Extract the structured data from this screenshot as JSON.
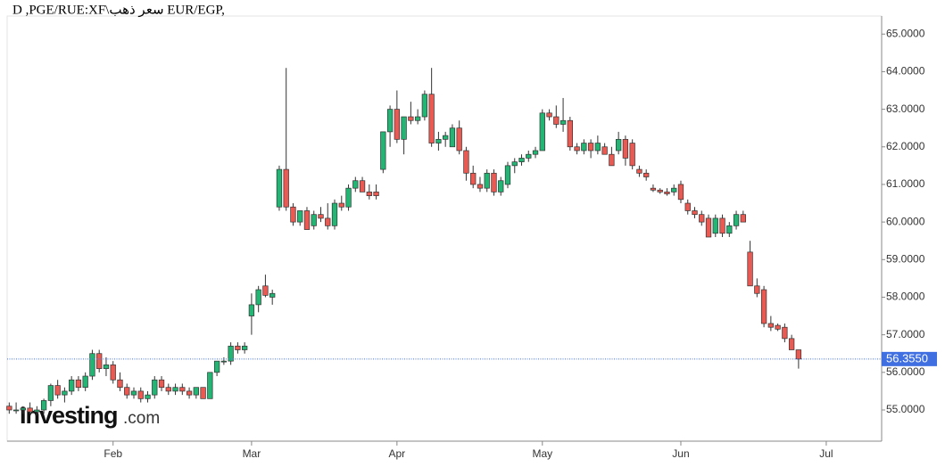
{
  "chart_data": {
    "type": "candlestick",
    "title": "D ,PGE/RUE:XF\\سعر ذهب EUR/EGP,",
    "watermark": [
      "Investing",
      ".com"
    ],
    "up_color": "#22b573",
    "down_color": "#ea5a52",
    "outline_color": "#333333",
    "ylim": [
      54.17,
      65.48
    ],
    "yticks": [
      {
        "value": 55,
        "label": "55.0000"
      },
      {
        "value": 56,
        "label": "56.0000"
      },
      {
        "value": 57,
        "label": "57.0000"
      },
      {
        "value": 58,
        "label": "58.0000"
      },
      {
        "value": 59,
        "label": "59.0000"
      },
      {
        "value": 60,
        "label": "60.0000"
      },
      {
        "value": 61,
        "label": "61.0000"
      },
      {
        "value": 62,
        "label": "62.0000"
      },
      {
        "value": 63,
        "label": "63.0000"
      },
      {
        "value": 64,
        "label": "64.0000"
      },
      {
        "value": 65,
        "label": "65.0000"
      }
    ],
    "xlim": [
      -0.3,
      126
    ],
    "xticks": [
      {
        "value": 15,
        "label": "Feb"
      },
      {
        "value": 35,
        "label": "Mar"
      },
      {
        "value": 56,
        "label": "Apr"
      },
      {
        "value": 77,
        "label": "May"
      },
      {
        "value": 97,
        "label": "Jun"
      },
      {
        "value": 118,
        "label": "Jul"
      }
    ],
    "grid": false,
    "last_price": {
      "value": 56.355,
      "label": "56.3550",
      "color": "#3f6fe0"
    },
    "ohlc": [
      [
        55.1,
        55.2,
        54.9,
        55.0
      ],
      [
        55.0,
        55.2,
        54.9,
        55.0
      ],
      [
        55.0,
        55.1,
        54.9,
        55.05
      ],
      [
        55.05,
        55.2,
        54.9,
        54.95
      ],
      [
        54.95,
        55.1,
        54.85,
        55.0
      ],
      [
        55.0,
        55.3,
        54.9,
        55.25
      ],
      [
        55.25,
        55.7,
        55.1,
        55.65
      ],
      [
        55.65,
        55.8,
        55.3,
        55.4
      ],
      [
        55.4,
        55.6,
        55.2,
        55.5
      ],
      [
        55.5,
        55.9,
        55.4,
        55.8
      ],
      [
        55.8,
        55.9,
        55.5,
        55.6
      ],
      [
        55.6,
        56.0,
        55.5,
        55.9
      ],
      [
        55.9,
        56.6,
        55.8,
        56.5
      ],
      [
        56.5,
        56.6,
        56.0,
        56.1
      ],
      [
        56.1,
        56.4,
        55.9,
        56.2
      ],
      [
        56.2,
        56.3,
        55.7,
        55.8
      ],
      [
        55.8,
        56.0,
        55.5,
        55.6
      ],
      [
        55.6,
        55.7,
        55.3,
        55.4
      ],
      [
        55.4,
        55.6,
        55.3,
        55.5
      ],
      [
        55.5,
        55.6,
        55.2,
        55.3
      ],
      [
        55.3,
        55.5,
        55.2,
        55.4
      ],
      [
        55.4,
        55.9,
        55.3,
        55.8
      ],
      [
        55.8,
        55.9,
        55.5,
        55.6
      ],
      [
        55.6,
        55.7,
        55.4,
        55.5
      ],
      [
        55.5,
        55.7,
        55.4,
        55.6
      ],
      [
        55.6,
        55.7,
        55.4,
        55.5
      ],
      [
        55.5,
        55.6,
        55.3,
        55.4
      ],
      [
        55.4,
        55.6,
        55.3,
        55.6
      ],
      [
        55.6,
        55.6,
        55.3,
        55.3
      ],
      [
        55.3,
        56.0,
        55.3,
        56.0
      ],
      [
        56.0,
        56.3,
        55.9,
        56.3
      ],
      [
        56.3,
        56.4,
        56.2,
        56.3
      ],
      [
        56.3,
        56.8,
        56.2,
        56.7
      ],
      [
        56.7,
        56.8,
        56.5,
        56.6
      ],
      [
        56.6,
        56.8,
        56.5,
        56.7
      ],
      [
        57.5,
        58.1,
        57.0,
        57.8
      ],
      [
        57.8,
        58.3,
        57.6,
        58.2
      ],
      [
        58.3,
        58.6,
        58.0,
        58.05
      ],
      [
        58.0,
        58.2,
        57.8,
        58.1
      ],
      [
        60.4,
        61.5,
        60.3,
        61.4
      ],
      [
        61.4,
        64.1,
        60.3,
        60.4
      ],
      [
        60.4,
        60.5,
        59.9,
        60.0
      ],
      [
        60.0,
        60.3,
        59.9,
        60.3
      ],
      [
        60.3,
        60.4,
        59.8,
        59.8
      ],
      [
        59.9,
        60.3,
        59.8,
        60.2
      ],
      [
        60.2,
        60.4,
        60.0,
        60.1
      ],
      [
        60.1,
        60.5,
        59.8,
        59.9
      ],
      [
        59.9,
        60.6,
        59.8,
        60.5
      ],
      [
        60.5,
        60.7,
        60.3,
        60.4
      ],
      [
        60.4,
        61.0,
        60.3,
        60.9
      ],
      [
        60.9,
        61.2,
        60.8,
        61.1
      ],
      [
        61.1,
        61.2,
        60.8,
        60.8
      ],
      [
        60.8,
        61.0,
        60.6,
        60.7
      ],
      [
        60.8,
        61.0,
        60.6,
        60.7
      ],
      [
        61.4,
        62.4,
        61.3,
        62.4
      ],
      [
        62.4,
        63.1,
        62.0,
        63.0
      ],
      [
        63.0,
        63.5,
        62.1,
        62.2
      ],
      [
        62.2,
        62.8,
        61.8,
        62.8
      ],
      [
        62.8,
        63.2,
        62.6,
        62.7
      ],
      [
        62.7,
        63.0,
        62.6,
        62.8
      ],
      [
        62.8,
        63.5,
        62.7,
        63.4
      ],
      [
        63.4,
        64.1,
        62.0,
        62.1
      ],
      [
        62.1,
        62.4,
        61.9,
        62.2
      ],
      [
        62.2,
        62.4,
        62.0,
        62.3
      ],
      [
        62.0,
        62.6,
        62.0,
        62.5
      ],
      [
        62.5,
        62.7,
        61.8,
        61.9
      ],
      [
        61.9,
        62.0,
        61.1,
        61.3
      ],
      [
        61.3,
        61.5,
        60.9,
        61.0
      ],
      [
        61.0,
        61.2,
        60.8,
        60.9
      ],
      [
        60.9,
        61.4,
        60.8,
        61.3
      ],
      [
        61.3,
        61.4,
        60.7,
        60.8
      ],
      [
        60.8,
        61.2,
        60.7,
        61.1
      ],
      [
        61.0,
        61.6,
        60.9,
        61.5
      ],
      [
        61.5,
        61.7,
        61.3,
        61.6
      ],
      [
        61.6,
        61.8,
        61.5,
        61.7
      ],
      [
        61.7,
        61.9,
        61.6,
        61.8
      ],
      [
        61.8,
        62.0,
        61.7,
        61.9
      ],
      [
        61.9,
        63.0,
        61.9,
        62.9
      ],
      [
        62.9,
        63.0,
        62.7,
        62.8
      ],
      [
        62.8,
        63.1,
        62.5,
        62.6
      ],
      [
        62.6,
        63.3,
        62.4,
        62.7
      ],
      [
        62.7,
        62.8,
        61.9,
        62.0
      ],
      [
        62.0,
        62.1,
        61.8,
        61.9
      ],
      [
        61.9,
        62.2,
        61.8,
        62.1
      ],
      [
        62.1,
        62.2,
        61.7,
        61.9
      ],
      [
        61.9,
        62.3,
        61.8,
        62.1
      ],
      [
        62.0,
        62.1,
        61.8,
        61.8
      ],
      [
        61.8,
        62.0,
        61.5,
        61.5
      ],
      [
        61.9,
        62.4,
        61.8,
        62.2
      ],
      [
        62.2,
        62.3,
        61.5,
        61.7
      ],
      [
        62.1,
        62.2,
        61.4,
        61.5
      ],
      [
        61.4,
        61.5,
        61.2,
        61.3
      ],
      [
        61.3,
        61.4,
        61.1,
        61.2
      ],
      [
        60.9,
        61.0,
        60.8,
        60.85
      ],
      [
        60.85,
        60.9,
        60.75,
        60.8
      ],
      [
        60.8,
        60.9,
        60.7,
        60.75
      ],
      [
        60.8,
        61.0,
        60.7,
        60.9
      ],
      [
        61.0,
        61.1,
        60.5,
        60.6
      ],
      [
        60.5,
        60.6,
        60.2,
        60.3
      ],
      [
        60.3,
        60.4,
        60.1,
        60.2
      ],
      [
        60.2,
        60.3,
        59.9,
        60.0
      ],
      [
        60.1,
        60.2,
        59.6,
        59.6
      ],
      [
        59.7,
        60.2,
        59.6,
        60.1
      ],
      [
        60.1,
        60.2,
        59.6,
        59.7
      ],
      [
        59.7,
        60.0,
        59.6,
        59.9
      ],
      [
        59.9,
        60.3,
        59.8,
        60.2
      ],
      [
        60.2,
        60.3,
        60.0,
        60.0
      ],
      [
        59.2,
        59.5,
        58.3,
        58.3
      ],
      [
        58.3,
        58.5,
        58.0,
        58.1
      ],
      [
        58.2,
        58.3,
        57.2,
        57.3
      ],
      [
        57.3,
        57.5,
        57.1,
        57.2
      ],
      [
        57.25,
        57.3,
        57.1,
        57.15
      ],
      [
        57.2,
        57.3,
        56.8,
        56.9
      ],
      [
        56.9,
        57.0,
        56.6,
        56.6
      ],
      [
        56.6,
        56.6,
        56.1,
        56.355
      ]
    ]
  }
}
